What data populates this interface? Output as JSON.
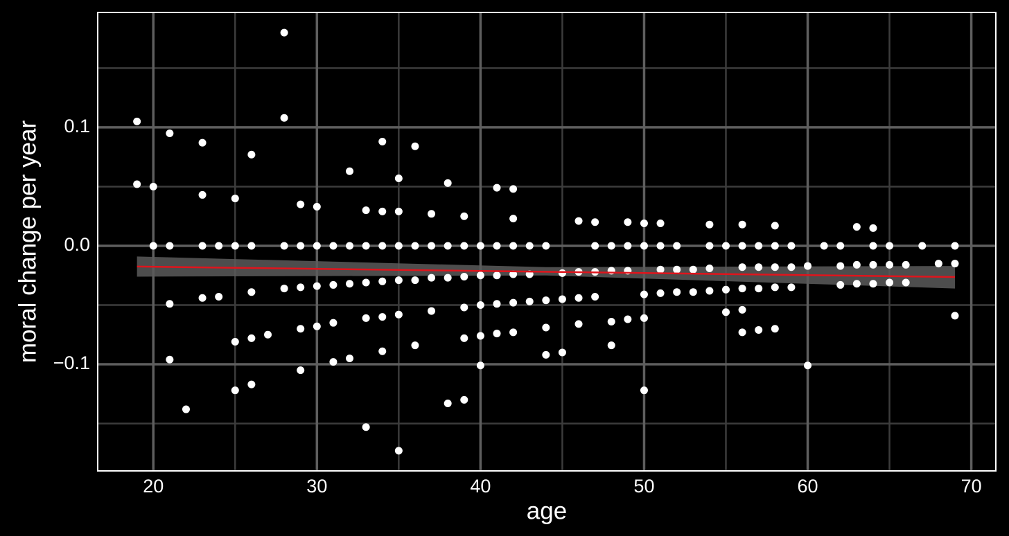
{
  "chart_data": {
    "type": "scatter",
    "xlabel": "age",
    "ylabel": "moral change per year",
    "xlim": [
      16.6,
      71.5
    ],
    "ylim": [
      -0.19,
      0.197
    ],
    "xticks": [
      20,
      30,
      40,
      50,
      60,
      70
    ],
    "yticks": [
      {
        "value": -0.1,
        "label": "−0.1"
      },
      {
        "value": 0,
        "label": "0.0"
      },
      0.1
    ],
    "xminor": [
      25,
      35,
      45,
      55,
      65
    ],
    "yminor": [
      -0.15,
      -0.05,
      0.05,
      0.15
    ],
    "grid": true,
    "point_color": "#ffffff",
    "fit": {
      "color": "#e0141c",
      "x": [
        19,
        69
      ],
      "y": [
        -0.0175,
        -0.0263
      ]
    },
    "band": {
      "color": "#5a5a5a",
      "x": [
        19,
        44,
        69
      ],
      "lower": [
        -0.026,
        -0.025,
        -0.036
      ],
      "upper": [
        -0.009,
        -0.018,
        -0.017
      ]
    },
    "x": [
      19,
      19,
      20,
      20,
      21,
      21,
      21,
      21,
      22,
      23,
      23,
      23,
      23,
      24,
      24,
      25,
      25,
      25,
      25,
      26,
      26,
      26,
      26,
      26,
      27,
      28,
      28,
      28,
      28,
      29,
      29,
      29,
      29,
      29,
      30,
      30,
      30,
      30,
      31,
      31,
      31,
      31,
      32,
      32,
      32,
      32,
      33,
      33,
      33,
      33,
      33,
      34,
      34,
      34,
      34,
      34,
      34,
      35,
      35,
      35,
      35,
      35,
      35,
      36,
      36,
      36,
      36,
      37,
      37,
      37,
      37,
      38,
      38,
      38,
      38,
      39,
      39,
      39,
      39,
      39,
      39,
      40,
      40,
      40,
      40,
      40,
      41,
      41,
      41,
      41,
      41,
      42,
      42,
      42,
      42,
      42,
      42,
      43,
      43,
      43,
      44,
      44,
      44,
      44,
      45,
      45,
      45,
      46,
      46,
      46,
      46,
      47,
      47,
      47,
      47,
      48,
      48,
      48,
      48,
      49,
      49,
      49,
      49,
      50,
      50,
      50,
      50,
      50,
      51,
      51,
      51,
      51,
      52,
      52,
      52,
      53,
      53,
      54,
      54,
      54,
      54,
      55,
      55,
      55,
      56,
      56,
      56,
      56,
      56,
      56,
      57,
      57,
      57,
      57,
      58,
      58,
      58,
      58,
      58,
      59,
      59,
      59,
      60,
      60,
      61,
      62,
      62,
      62,
      63,
      63,
      63,
      64,
      64,
      64,
      64,
      65,
      65,
      65,
      66,
      66,
      67,
      68,
      69,
      69,
      69
    ],
    "y": [
      0.105,
      0.052,
      0.05,
      0,
      0.095,
      0,
      -0.049,
      -0.096,
      -0.138,
      0.087,
      0.043,
      0,
      -0.044,
      0,
      -0.043,
      0.04,
      0,
      -0.081,
      -0.122,
      0.077,
      0,
      -0.039,
      -0.078,
      -0.117,
      -0.075,
      0.18,
      0.108,
      0,
      -0.036,
      0.035,
      0,
      -0.035,
      -0.07,
      -0.105,
      0.033,
      0,
      -0.034,
      -0.068,
      0,
      -0.033,
      -0.065,
      -0.098,
      0.063,
      0,
      -0.032,
      -0.095,
      0.03,
      0,
      -0.031,
      -0.061,
      -0.153,
      0.088,
      0.029,
      0,
      -0.03,
      -0.06,
      -0.089,
      0.057,
      0.029,
      0,
      -0.029,
      -0.058,
      -0.173,
      0.084,
      0,
      -0.029,
      -0.084,
      0.027,
      0,
      -0.027,
      -0.055,
      0.053,
      0,
      -0.027,
      -0.133,
      0.025,
      0,
      -0.026,
      -0.052,
      -0.078,
      -0.13,
      0,
      -0.025,
      -0.05,
      -0.076,
      -0.101,
      0.049,
      0,
      -0.025,
      -0.049,
      -0.074,
      0.048,
      0.023,
      0,
      -0.024,
      -0.048,
      -0.073,
      0,
      -0.024,
      -0.047,
      0,
      -0.046,
      -0.069,
      -0.092,
      -0.023,
      -0.045,
      -0.09,
      0.021,
      -0.022,
      -0.044,
      -0.066,
      0.02,
      0,
      -0.022,
      -0.043,
      0,
      -0.021,
      -0.064,
      -0.084,
      0.02,
      0,
      -0.021,
      -0.062,
      0.019,
      0,
      -0.041,
      -0.061,
      -0.122,
      0.019,
      0,
      -0.02,
      -0.04,
      0,
      -0.02,
      -0.039,
      -0.02,
      -0.039,
      0.018,
      0,
      -0.019,
      -0.038,
      0,
      -0.037,
      -0.056,
      0.018,
      0,
      -0.018,
      -0.036,
      -0.054,
      -0.073,
      0,
      -0.018,
      -0.036,
      -0.071,
      0.017,
      0,
      -0.018,
      -0.035,
      -0.07,
      0,
      -0.018,
      -0.035,
      -0.017,
      -0.101,
      0,
      0,
      -0.017,
      -0.033,
      0.016,
      -0.016,
      -0.032,
      0.015,
      0,
      -0.016,
      -0.032,
      0,
      -0.016,
      -0.031,
      -0.016,
      -0.031,
      0,
      -0.015,
      0,
      -0.015,
      -0.059
    ]
  }
}
